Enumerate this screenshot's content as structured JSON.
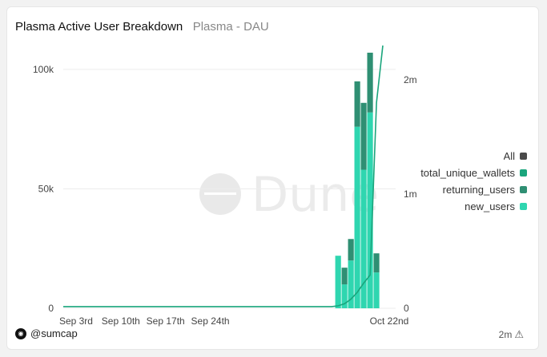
{
  "header": {
    "title": "Plasma Active User Breakdown",
    "subtitle": "Plasma - DAU"
  },
  "footer": {
    "author": "@sumcap"
  },
  "corner": {
    "label": "2m",
    "icon": "warning-icon"
  },
  "watermark": {
    "text": "Dune"
  },
  "colors": {
    "all": "#4a4a4a",
    "total_unique_wallets": "#1aa57c",
    "returning_users": "#2f8f73",
    "new_users": "#2fd6b0",
    "axis_text": "#444",
    "grid": "#ececec"
  },
  "chart_data": {
    "type": "bar",
    "x_axis": {
      "ticks": [
        "Sep 3rd",
        "Sep 10th",
        "Sep 17th",
        "Sep 24th",
        "Oct 22nd"
      ],
      "tick_dates": [
        "2025-09-03",
        "2025-09-10",
        "2025-09-17",
        "2025-09-24",
        "2025-10-22"
      ],
      "range": [
        "2025-09-01",
        "2025-10-23"
      ]
    },
    "y_left": {
      "range": [
        0,
        110000
      ],
      "ticks": [
        0,
        50000,
        100000
      ],
      "tick_labels": [
        "0",
        "50k",
        "100k"
      ]
    },
    "y_right": {
      "range": [
        0,
        2300000
      ],
      "ticks": [
        0,
        1000000,
        2000000
      ],
      "tick_labels": [
        "0",
        "1m",
        "2m"
      ]
    },
    "legend": [
      {
        "key": "all",
        "label": "All"
      },
      {
        "key": "total_unique_wallets",
        "label": "total_unique_wallets"
      },
      {
        "key": "returning_users",
        "label": "returning_users"
      },
      {
        "key": "new_users",
        "label": "new_users"
      }
    ],
    "legend_position": "right",
    "dates": [
      "2025-10-14",
      "2025-10-15",
      "2025-10-16",
      "2025-10-17",
      "2025-10-18",
      "2025-10-19",
      "2025-10-20",
      "2025-10-21",
      "2025-10-22"
    ],
    "stacked_series": [
      {
        "name": "new_users",
        "key": "new_users",
        "values": [
          22000,
          10000,
          20000,
          76000,
          58000,
          82000,
          15000,
          0,
          0
        ]
      },
      {
        "name": "returning_users",
        "key": "returning_users",
        "values": [
          0,
          7000,
          9000,
          19000,
          28000,
          25000,
          8000,
          0,
          0
        ]
      }
    ],
    "line_series": {
      "name": "total_unique_wallets",
      "key": "total_unique_wallets",
      "axis": "right",
      "points": [
        [
          "2025-09-01",
          15000
        ],
        [
          "2025-10-13",
          15000
        ],
        [
          "2025-10-14",
          22000
        ],
        [
          "2025-10-15",
          40000
        ],
        [
          "2025-10-16",
          80000
        ],
        [
          "2025-10-17",
          140000
        ],
        [
          "2025-10-18",
          220000
        ],
        [
          "2025-10-19",
          290000
        ],
        [
          "2025-10-20",
          1800000
        ],
        [
          "2025-10-21",
          2300000
        ]
      ]
    },
    "grid": true
  }
}
